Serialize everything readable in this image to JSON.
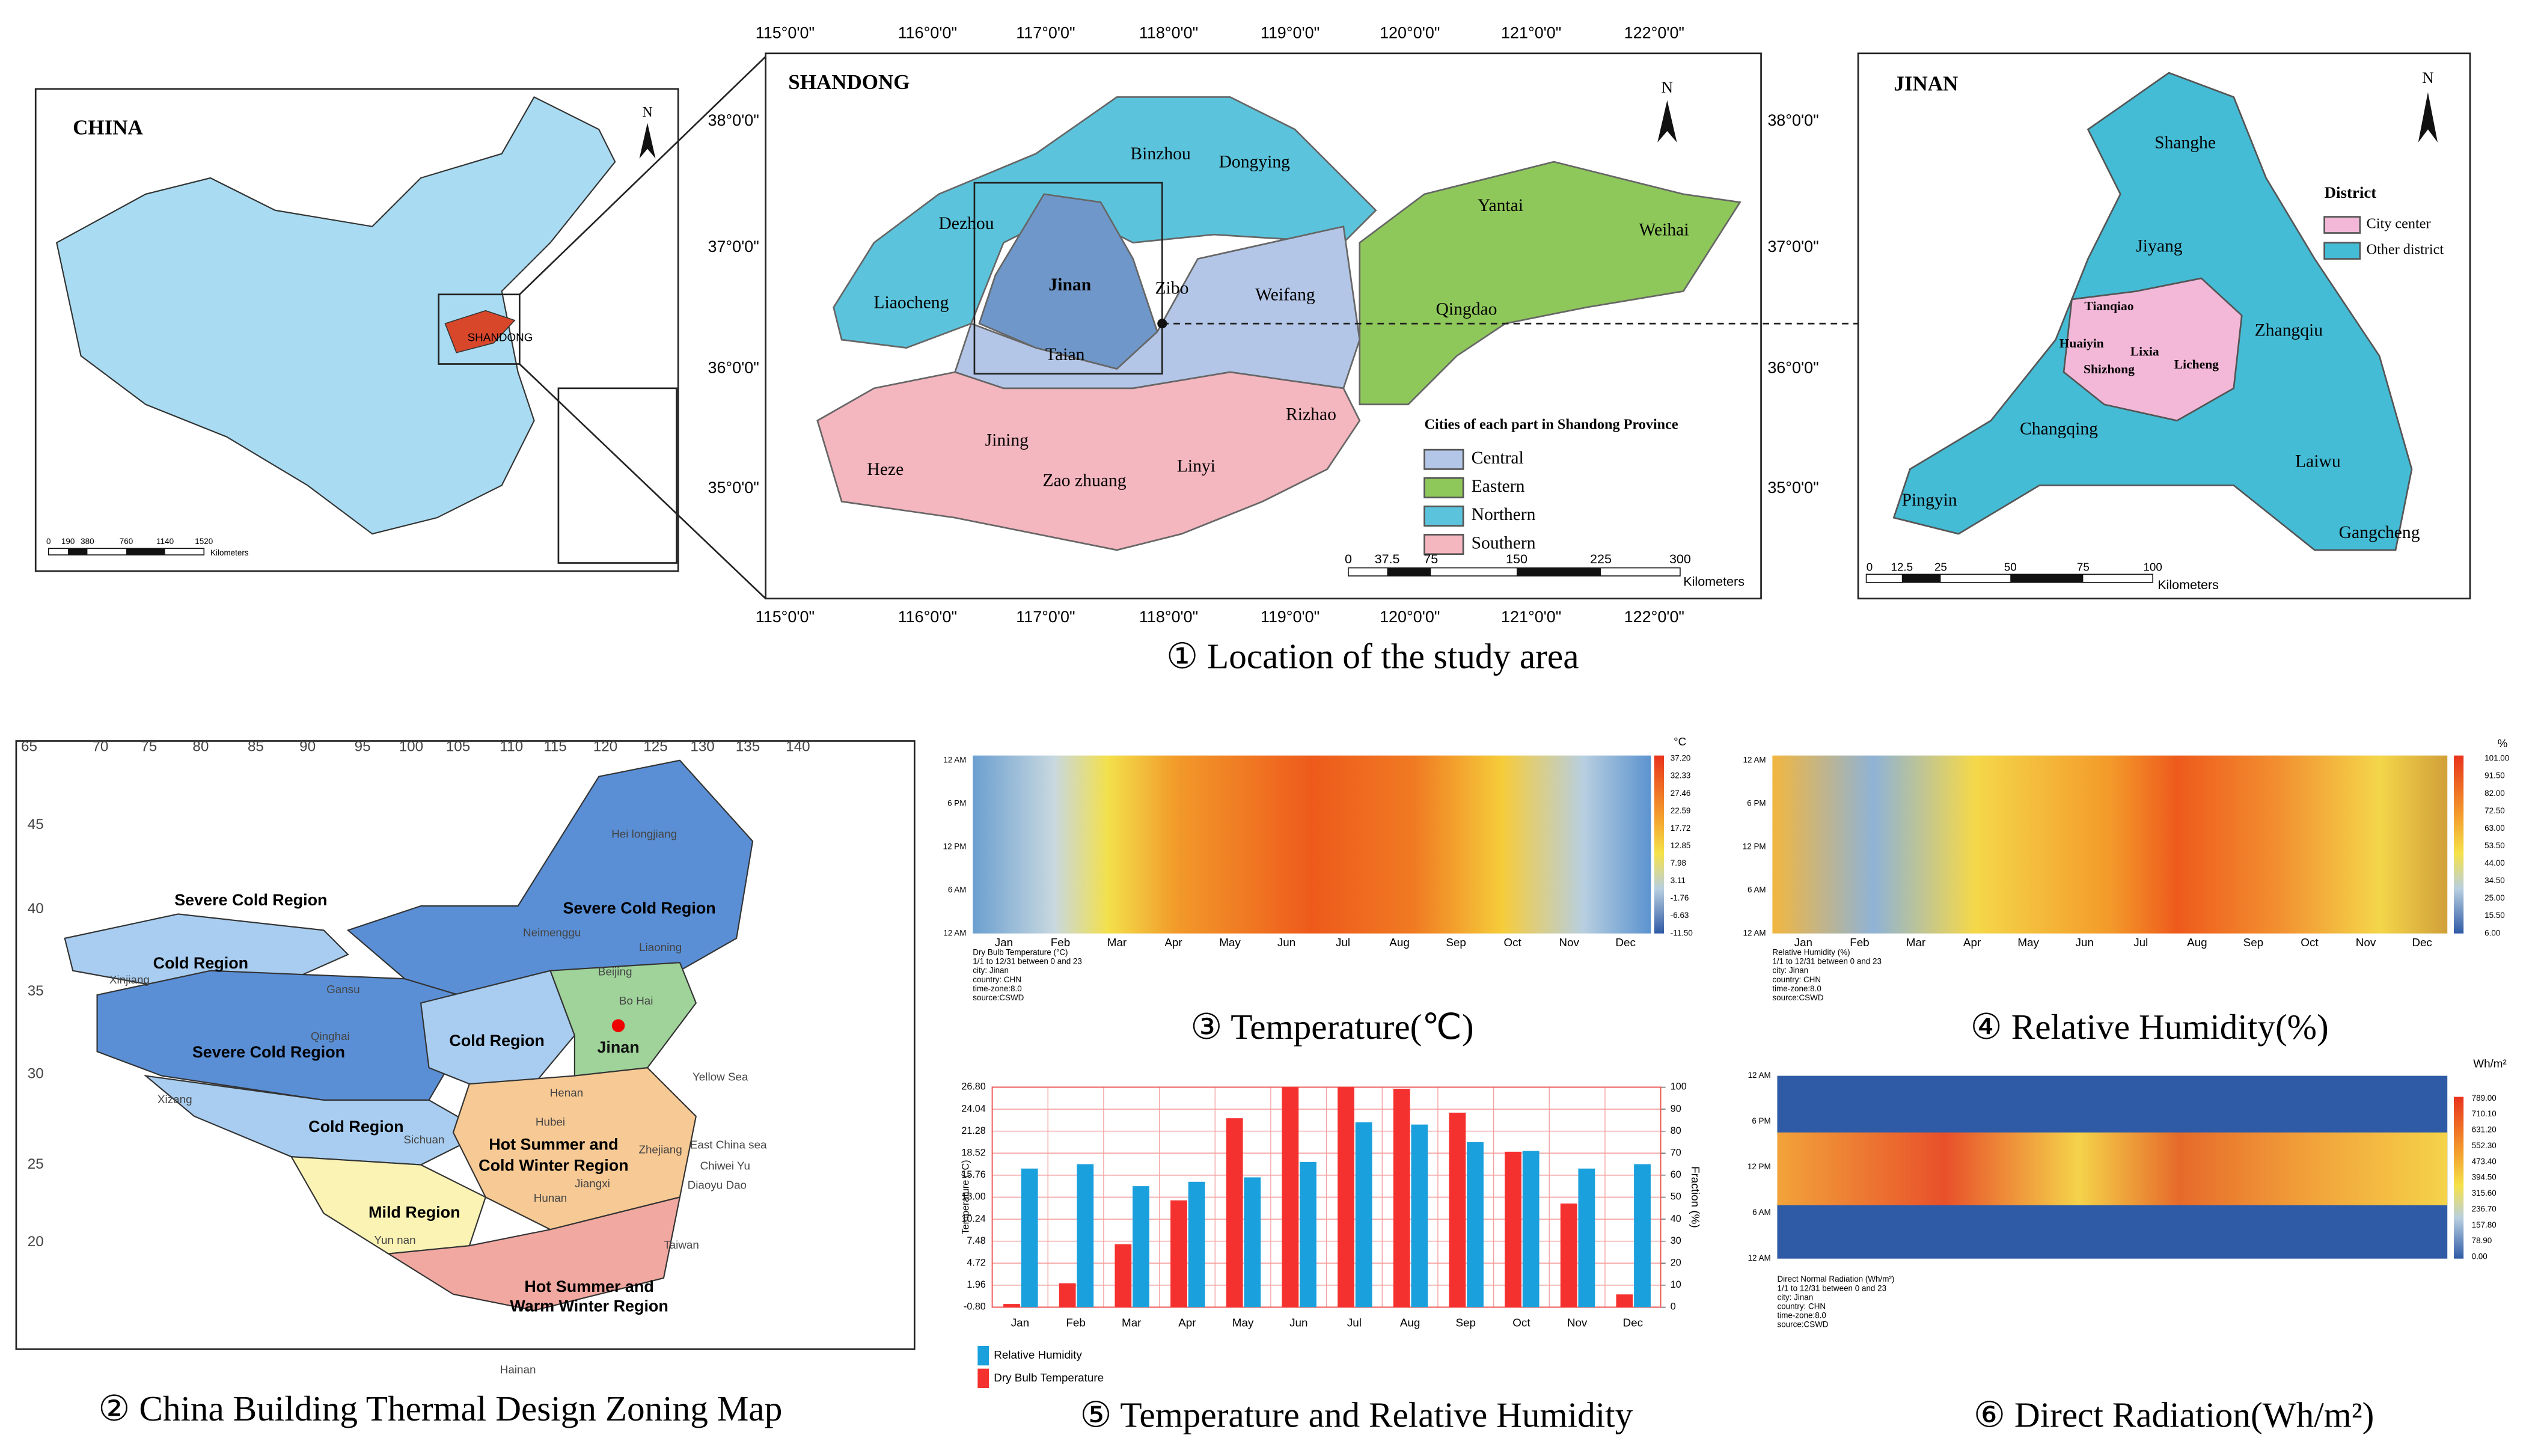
{
  "location_panel": {
    "caption": "① Location of the study area",
    "china": {
      "title": "CHINA",
      "label": "SHANDONG",
      "north": "N",
      "scale_ticks": [
        "0",
        "190",
        "380",
        "760",
        "1140",
        "1520"
      ],
      "scale_unit": "Kilometers"
    },
    "shandong": {
      "title": "SHANDONG",
      "north": "N",
      "lon_labels": [
        "115°0'0\"",
        "116°0'0\"",
        "117°0'0\"",
        "118°0'0\"",
        "119°0'0\"",
        "120°0'0\"",
        "121°0'0\"",
        "122°0'0\""
      ],
      "lat_labels": [
        "38°0'0\"",
        "37°0'0\"",
        "36°0'0\"",
        "35°0'0\""
      ],
      "cities": [
        "Binzhou",
        "Dongying",
        "Dezhou",
        "Yantai",
        "Weihai",
        "Jinan",
        "Zibo",
        "Weifang",
        "Liaocheng",
        "Qingdao",
        "Taian",
        "Rizhao",
        "Jining",
        "Heze",
        "Linyi",
        "Zao zhuang"
      ],
      "legend_title": "Cities of each part in Shandong Province",
      "legend": [
        "Central",
        "Eastern",
        "Northern",
        "Southern"
      ],
      "scale_ticks": [
        "0",
        "37.5",
        "75",
        "150",
        "225",
        "300"
      ],
      "scale_unit": "Kilometers"
    },
    "jinan": {
      "title": "JINAN",
      "north": "N",
      "districts": [
        "Shanghe",
        "Jiyang",
        "Tianqiao",
        "Huaiyin",
        "Lixia",
        "Shizhong",
        "Licheng",
        "Zhangqiu",
        "Changqing",
        "Laiwu",
        "Pingyin",
        "Gangcheng"
      ],
      "legend_title": "District",
      "legend": [
        "City center",
        "Other district"
      ],
      "scale_ticks": [
        "0",
        "12.5",
        "25",
        "50",
        "75",
        "100"
      ],
      "scale_unit": "Kilometers"
    }
  },
  "zoning_map": {
    "caption": "② China Building Thermal Design Zoning Map",
    "regions": [
      "Severe Cold Region",
      "Severe Cold Region",
      "Cold Region",
      "Severe Cold Region",
      "Cold Region",
      "Cold Region",
      "Hot Summer and",
      "Cold Winter Region",
      "Mild Region",
      "Hot Summer and",
      "Warm Winter Region"
    ],
    "places": [
      "Xinjiang",
      "Qinghai",
      "Xizang",
      "Gansu",
      "Neimenggu",
      "Hei longjiang",
      "Liaoning",
      "Beijing",
      "Bo Hai",
      "Henan",
      "Hubei",
      "Sichuan",
      "Yun nan",
      "Jiangxi",
      "Hunan",
      "Zhejiang",
      "Yellow Sea",
      "East China sea",
      "Chiwei Yu",
      "Diaoyu Dao",
      "Taiwan",
      "Hainan",
      "Jinan"
    ],
    "lon_labels": [
      "65",
      "70",
      "75",
      "80",
      "85",
      "90",
      "95",
      "100",
      "105",
      "110",
      "115",
      "120",
      "125",
      "130",
      "135",
      "140"
    ],
    "lat_labels": [
      "45",
      "40",
      "35",
      "30",
      "25",
      "20"
    ]
  },
  "temperature_heatmap": {
    "caption": "③ Temperature(℃)",
    "unit": "°C",
    "y_labels": [
      "12 AM",
      "6 PM",
      "12 PM",
      "6 AM",
      "12 AM"
    ],
    "months": [
      "Jan",
      "Feb",
      "Mar",
      "Apr",
      "May",
      "Jun",
      "Jul",
      "Aug",
      "Sep",
      "Oct",
      "Nov",
      "Dec"
    ],
    "colorbar_ticks": [
      "37.20",
      "32.33",
      "27.46",
      "22.59",
      "17.72",
      "12.85",
      "7.98",
      "3.11",
      "-1.76",
      "-6.63",
      "-11.50"
    ],
    "notes": [
      "Dry Bulb Temperature (°C)",
      "1/1 to 12/31 between 0 and 23",
      "city: Jinan",
      "country: CHN",
      "time-zone:8.0",
      "source:CSWD"
    ]
  },
  "humidity_heatmap": {
    "caption": "④ Relative Humidity(%)",
    "unit": "%",
    "y_labels": [
      "12 AM",
      "6 PM",
      "12 PM",
      "6 AM",
      "12 AM"
    ],
    "months": [
      "Jan",
      "Feb",
      "Mar",
      "Apr",
      "May",
      "Jun",
      "Jul",
      "Aug",
      "Sep",
      "Oct",
      "Nov",
      "Dec"
    ],
    "colorbar_ticks": [
      "101.00",
      "91.50",
      "82.00",
      "72.50",
      "63.00",
      "53.50",
      "44.00",
      "34.50",
      "25.00",
      "15.50",
      "6.00"
    ],
    "notes": [
      "Relative Humidity (%)",
      "1/1 to 12/31 between 0 and 23",
      "city: Jinan",
      "country: CHN",
      "time-zone:8.0",
      "source:CSWD"
    ]
  },
  "radiation_heatmap": {
    "caption": "⑥ Direct Radiation(Wh/m²)",
    "unit": "Wh/m²",
    "y_labels": [
      "12 AM",
      "6 PM",
      "12 PM",
      "6 AM",
      "12 AM"
    ],
    "colorbar_ticks": [
      "789.00",
      "710.10",
      "631.20",
      "552.30",
      "473.40",
      "394.50",
      "315.60",
      "236.70",
      "157.80",
      "78.90",
      "0.00"
    ],
    "notes": [
      "Direct Normal Radiation (Wh/m²)",
      "1/1 to 12/31 between 0 and 23",
      "city: Jinan",
      "country: CHN",
      "time-zone:8.0",
      "source:CSWD"
    ]
  },
  "chart_data": {
    "type": "bar",
    "title": "⑤ Temperature and Relative Humidity",
    "categories": [
      "Jan",
      "Feb",
      "Mar",
      "Apr",
      "May",
      "Jun",
      "Jul",
      "Aug",
      "Sep",
      "Oct",
      "Nov",
      "Dec"
    ],
    "y_label": "Temperature (°C)",
    "y2_label": "Fraction (%)",
    "series": [
      {
        "name": "Dry Bulb Temperature",
        "color": "#f5312f",
        "values": [
          -0.4,
          2.2,
          7.1,
          12.6,
          22.9,
          26.8,
          26.8,
          26.6,
          23.6,
          18.7,
          12.2,
          0.8
        ]
      },
      {
        "name": "Relative Humidity",
        "color": "#1aa0dc",
        "axis": "y2",
        "values": [
          63,
          65,
          55,
          57,
          59,
          66,
          84,
          83,
          75,
          71,
          63,
          65
        ]
      }
    ],
    "ylim": [
      -0.8,
      26.8
    ],
    "yticks": [
      {
        "value": -0.8,
        "label": "-0.80"
      },
      {
        "value": 1.96,
        "label": "1.96"
      },
      {
        "value": 4.72,
        "label": "4.72"
      },
      {
        "value": 7.48,
        "label": "7.48"
      },
      {
        "value": 10.24,
        "label": "10.24"
      },
      {
        "value": 13,
        "label": "13.00"
      },
      {
        "value": 15.76,
        "label": "15.76"
      },
      {
        "value": 18.52,
        "label": "18.52"
      },
      {
        "value": 21.28,
        "label": "21.28"
      },
      {
        "value": 24.04,
        "label": "24.04"
      },
      {
        "value": 26.8,
        "label": "26.80"
      }
    ],
    "y2lim": [
      0,
      100
    ],
    "y2ticks": [
      0,
      10,
      20,
      30,
      40,
      50,
      60,
      70,
      80,
      90,
      100
    ],
    "grid": true,
    "legend": "bottom-left"
  }
}
